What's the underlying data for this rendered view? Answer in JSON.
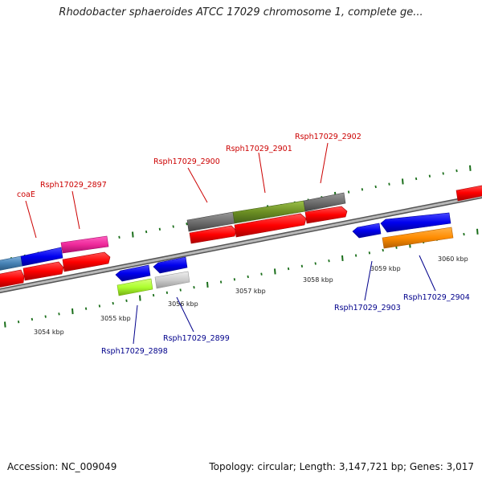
{
  "title": "Rhodobacter sphaeroides ATCC 17029 chromosome 1, complete ge...",
  "accession": "Accession: NC_009049",
  "summary": "Topology: circular; Length: 3,147,721 bp; Genes: 3,017",
  "colors": {
    "forward_label": "#cc0000",
    "reverse_label": "#00008b",
    "tick": "#1a6e1a",
    "backbone": "#8c8c8c"
  },
  "scale_labels": [
    "3054 kbp",
    "3055 kbp",
    "3056 kbp",
    "3057 kbp",
    "3058 kbp",
    "3059 kbp",
    "3060 kbp"
  ],
  "top_labels": [
    "coaE",
    "Rsph17029_2897",
    "Rsph17029_2900",
    "Rsph17029_2901",
    "Rsph17029_2902"
  ],
  "bottom_labels": [
    "Rsph17029_2898",
    "Rsph17029_2899",
    "Rsph17029_2903",
    "Rsph17029_2904"
  ]
}
